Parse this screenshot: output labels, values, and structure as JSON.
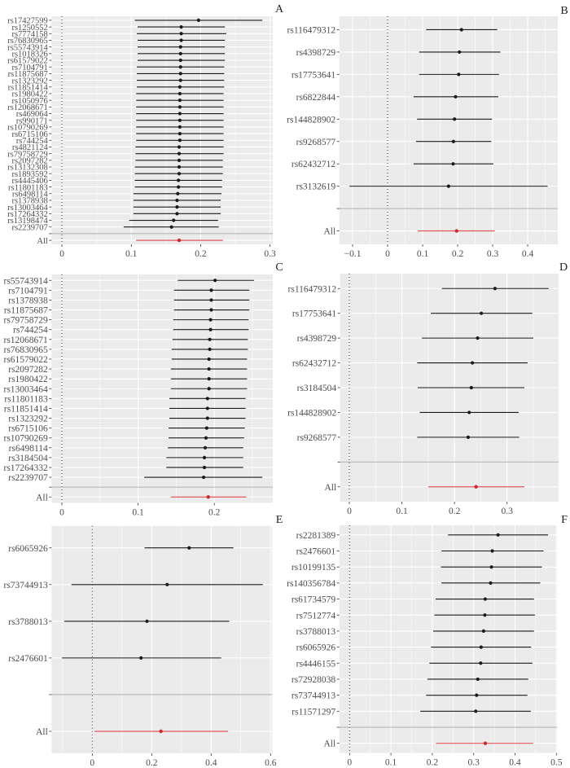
{
  "figure": {
    "description": "Leave-one-out forest plots, six panels A-F",
    "colors": {
      "panel_background": "#EBEBEB",
      "grid": "#FFFFFF",
      "snp_estimate": "#1A1A1A",
      "overall_line": "#E4575B",
      "overall_point": "#CC2A2F",
      "separator": "#ABABAB",
      "zero_line": "#222222"
    }
  },
  "chart_data": [
    {
      "panel": "A",
      "type": "forest",
      "xlim": [
        -0.015,
        0.304
      ],
      "xticks": [
        0,
        0.1,
        0.2,
        0.3
      ],
      "xtick_labels": [
        "0",
        "0.1",
        "0.2",
        "0.3"
      ],
      "reference_line": 0,
      "rows": [
        {
          "snp": "rs17427599",
          "b": 0.197,
          "lo": 0.105,
          "hi": 0.289
        },
        {
          "snp": "rs1250552",
          "b": 0.172,
          "lo": 0.109,
          "hi": 0.235
        },
        {
          "snp": "rs7774158",
          "b": 0.172,
          "lo": 0.108,
          "hi": 0.237
        },
        {
          "snp": "rs76830965",
          "b": 0.172,
          "lo": 0.109,
          "hi": 0.235
        },
        {
          "snp": "rs55743914",
          "b": 0.171,
          "lo": 0.109,
          "hi": 0.235
        },
        {
          "snp": "rs1018326",
          "b": 0.171,
          "lo": 0.109,
          "hi": 0.235
        },
        {
          "snp": "rs61579022",
          "b": 0.171,
          "lo": 0.109,
          "hi": 0.235
        },
        {
          "snp": "rs7104791",
          "b": 0.171,
          "lo": 0.108,
          "hi": 0.234
        },
        {
          "snp": "rs11875687",
          "b": 0.171,
          "lo": 0.108,
          "hi": 0.234
        },
        {
          "snp": "rs1323292",
          "b": 0.171,
          "lo": 0.108,
          "hi": 0.234
        },
        {
          "snp": "rs11851414",
          "b": 0.17,
          "lo": 0.108,
          "hi": 0.234
        },
        {
          "snp": "rs1980422",
          "b": 0.17,
          "lo": 0.107,
          "hi": 0.233
        },
        {
          "snp": "rs1050976",
          "b": 0.17,
          "lo": 0.107,
          "hi": 0.233
        },
        {
          "snp": "rs12068671",
          "b": 0.17,
          "lo": 0.107,
          "hi": 0.233
        },
        {
          "snp": "rs469064",
          "b": 0.17,
          "lo": 0.107,
          "hi": 0.233
        },
        {
          "snp": "rs990171",
          "b": 0.17,
          "lo": 0.107,
          "hi": 0.233
        },
        {
          "snp": "rs10790269",
          "b": 0.17,
          "lo": 0.107,
          "hi": 0.233
        },
        {
          "snp": "rs6715106",
          "b": 0.17,
          "lo": 0.107,
          "hi": 0.233
        },
        {
          "snp": "rs744254",
          "b": 0.17,
          "lo": 0.107,
          "hi": 0.233
        },
        {
          "snp": "rs4821124",
          "b": 0.169,
          "lo": 0.106,
          "hi": 0.233
        },
        {
          "snp": "rs79758729",
          "b": 0.169,
          "lo": 0.106,
          "hi": 0.233
        },
        {
          "snp": "rs2097282",
          "b": 0.169,
          "lo": 0.106,
          "hi": 0.232
        },
        {
          "snp": "rs13132308",
          "b": 0.169,
          "lo": 0.105,
          "hi": 0.232
        },
        {
          "snp": "rs1893592",
          "b": 0.169,
          "lo": 0.105,
          "hi": 0.232
        },
        {
          "snp": "rs4445406",
          "b": 0.168,
          "lo": 0.105,
          "hi": 0.231
        },
        {
          "snp": "rs11801183",
          "b": 0.168,
          "lo": 0.105,
          "hi": 0.231
        },
        {
          "snp": "rs6498114",
          "b": 0.167,
          "lo": 0.103,
          "hi": 0.23
        },
        {
          "snp": "rs1378938",
          "b": 0.166,
          "lo": 0.103,
          "hi": 0.229
        },
        {
          "snp": "rs13003464",
          "b": 0.166,
          "lo": 0.103,
          "hi": 0.229
        },
        {
          "snp": "rs17264332",
          "b": 0.166,
          "lo": 0.103,
          "hi": 0.229
        },
        {
          "snp": "rs13198474",
          "b": 0.161,
          "lo": 0.097,
          "hi": 0.225
        },
        {
          "snp": "rs2239707",
          "b": 0.158,
          "lo": 0.089,
          "hi": 0.226
        }
      ],
      "overall": {
        "label": "All",
        "b": 0.169,
        "lo": 0.107,
        "hi": 0.232
      }
    },
    {
      "panel": "B",
      "type": "forest",
      "xlim": [
        -0.138,
        0.486
      ],
      "xticks": [
        -0.1,
        0,
        0.1,
        0.2,
        0.3,
        0.4
      ],
      "xtick_labels": [
        "−0.1",
        "0",
        "0.1",
        "0.2",
        "0.3",
        "0.4"
      ],
      "reference_line": 0,
      "rows": [
        {
          "snp": "rs116479312",
          "b": 0.211,
          "lo": 0.11,
          "hi": 0.313
        },
        {
          "snp": "rs4398729",
          "b": 0.205,
          "lo": 0.09,
          "hi": 0.322
        },
        {
          "snp": "rs17753641",
          "b": 0.203,
          "lo": 0.09,
          "hi": 0.318
        },
        {
          "snp": "rs6822844",
          "b": 0.194,
          "lo": 0.074,
          "hi": 0.316
        },
        {
          "snp": "rs144828902",
          "b": 0.191,
          "lo": 0.084,
          "hi": 0.298
        },
        {
          "snp": "rs9268577",
          "b": 0.188,
          "lo": 0.081,
          "hi": 0.296
        },
        {
          "snp": "rs62432712",
          "b": 0.187,
          "lo": 0.074,
          "hi": 0.302
        },
        {
          "snp": "rs3132619",
          "b": 0.174,
          "lo": -0.109,
          "hi": 0.457
        }
      ],
      "overall": {
        "label": "All",
        "b": 0.197,
        "lo": 0.086,
        "hi": 0.306
      }
    },
    {
      "panel": "C",
      "type": "forest",
      "xlim": [
        -0.0136,
        0.2767
      ],
      "xticks": [
        0,
        0.1,
        0.2
      ],
      "xtick_labels": [
        "0",
        "0.1",
        "0.2"
      ],
      "reference_line": 0,
      "rows": [
        {
          "snp": "rs55743914",
          "b": 0.201,
          "lo": 0.152,
          "hi": 0.252
        },
        {
          "snp": "rs7104791",
          "b": 0.196,
          "lo": 0.147,
          "hi": 0.246
        },
        {
          "snp": "rs1378938",
          "b": 0.196,
          "lo": 0.147,
          "hi": 0.246
        },
        {
          "snp": "rs11875687",
          "b": 0.196,
          "lo": 0.147,
          "hi": 0.246
        },
        {
          "snp": "rs79758729",
          "b": 0.195,
          "lo": 0.146,
          "hi": 0.245
        },
        {
          "snp": "rs744254",
          "b": 0.195,
          "lo": 0.146,
          "hi": 0.245
        },
        {
          "snp": "rs12068671",
          "b": 0.194,
          "lo": 0.145,
          "hi": 0.244
        },
        {
          "snp": "rs76830965",
          "b": 0.194,
          "lo": 0.144,
          "hi": 0.244
        },
        {
          "snp": "rs61579022",
          "b": 0.193,
          "lo": 0.144,
          "hi": 0.243
        },
        {
          "snp": "rs2097282",
          "b": 0.193,
          "lo": 0.143,
          "hi": 0.243
        },
        {
          "snp": "rs1980422",
          "b": 0.193,
          "lo": 0.143,
          "hi": 0.243
        },
        {
          "snp": "rs13003464",
          "b": 0.193,
          "lo": 0.143,
          "hi": 0.243
        },
        {
          "snp": "rs11801183",
          "b": 0.191,
          "lo": 0.141,
          "hi": 0.241
        },
        {
          "snp": "rs11851414",
          "b": 0.191,
          "lo": 0.141,
          "hi": 0.241
        },
        {
          "snp": "rs1323292",
          "b": 0.191,
          "lo": 0.141,
          "hi": 0.241
        },
        {
          "snp": "rs6715106",
          "b": 0.19,
          "lo": 0.14,
          "hi": 0.24
        },
        {
          "snp": "rs10790269",
          "b": 0.189,
          "lo": 0.14,
          "hi": 0.239
        },
        {
          "snp": "rs6498114",
          "b": 0.188,
          "lo": 0.139,
          "hi": 0.238
        },
        {
          "snp": "rs3184504",
          "b": 0.187,
          "lo": 0.137,
          "hi": 0.238
        },
        {
          "snp": "rs17264332",
          "b": 0.187,
          "lo": 0.137,
          "hi": 0.238
        },
        {
          "snp": "rs2239707",
          "b": 0.186,
          "lo": 0.108,
          "hi": 0.263
        }
      ],
      "overall": {
        "label": "All",
        "b": 0.192,
        "lo": 0.143,
        "hi": 0.242
      }
    },
    {
      "panel": "D",
      "type": "forest",
      "xlim": [
        -0.0175,
        0.398
      ],
      "xticks": [
        0,
        0.1,
        0.2,
        0.3
      ],
      "xtick_labels": [
        "0",
        "0.1",
        "0.2",
        "0.3"
      ],
      "reference_line": 0,
      "rows": [
        {
          "snp": "rs116479312",
          "b": 0.277,
          "lo": 0.176,
          "hi": 0.379
        },
        {
          "snp": "rs17753641",
          "b": 0.251,
          "lo": 0.155,
          "hi": 0.348
        },
        {
          "snp": "rs4398729",
          "b": 0.244,
          "lo": 0.138,
          "hi": 0.35
        },
        {
          "snp": "rs62432712",
          "b": 0.234,
          "lo": 0.129,
          "hi": 0.339
        },
        {
          "snp": "rs3184504",
          "b": 0.232,
          "lo": 0.13,
          "hi": 0.333
        },
        {
          "snp": "rs144828902",
          "b": 0.228,
          "lo": 0.134,
          "hi": 0.322
        },
        {
          "snp": "rs9268577",
          "b": 0.226,
          "lo": 0.129,
          "hi": 0.323
        }
      ],
      "overall": {
        "label": "All",
        "b": 0.241,
        "lo": 0.15,
        "hi": 0.333
      }
    },
    {
      "panel": "E",
      "type": "forest",
      "xlim": [
        -0.137,
        0.6055
      ],
      "xticks": [
        0,
        0.2,
        0.4,
        0.6
      ],
      "xtick_labels": [
        "0",
        "0.2",
        "0.4",
        "0.6"
      ],
      "reference_line": 0,
      "rows": [
        {
          "snp": "rs6065926",
          "b": 0.326,
          "lo": 0.176,
          "hi": 0.475
        },
        {
          "snp": "rs73744913",
          "b": 0.252,
          "lo": -0.07,
          "hi": 0.574
        },
        {
          "snp": "rs3788013",
          "b": 0.184,
          "lo": -0.094,
          "hi": 0.461
        },
        {
          "snp": "rs2476601",
          "b": 0.164,
          "lo": -0.102,
          "hi": 0.434
        }
      ],
      "overall": {
        "label": "All",
        "b": 0.231,
        "lo": 0.007,
        "hi": 0.457
      }
    },
    {
      "panel": "F",
      "type": "forest",
      "xlim": [
        -0.0248,
        0.502
      ],
      "xticks": [
        0,
        0.1,
        0.2,
        0.3,
        0.4,
        0.5
      ],
      "xtick_labels": [
        "0",
        "0.1",
        "0.2",
        "0.3",
        "0.4",
        "0.5"
      ],
      "reference_line": 0,
      "rows": [
        {
          "snp": "rs2281389",
          "b": 0.359,
          "lo": 0.238,
          "hi": 0.48
        },
        {
          "snp": "rs2476601",
          "b": 0.345,
          "lo": 0.222,
          "hi": 0.469
        },
        {
          "snp": "rs10199135",
          "b": 0.343,
          "lo": 0.221,
          "hi": 0.465
        },
        {
          "snp": "rs140356784",
          "b": 0.341,
          "lo": 0.222,
          "hi": 0.461
        },
        {
          "snp": "rs61734579",
          "b": 0.328,
          "lo": 0.208,
          "hi": 0.446
        },
        {
          "snp": "rs7512774",
          "b": 0.327,
          "lo": 0.205,
          "hi": 0.448
        },
        {
          "snp": "rs3788013",
          "b": 0.324,
          "lo": 0.202,
          "hi": 0.446
        },
        {
          "snp": "rs6065926",
          "b": 0.318,
          "lo": 0.197,
          "hi": 0.439
        },
        {
          "snp": "rs4446155",
          "b": 0.317,
          "lo": 0.193,
          "hi": 0.442
        },
        {
          "snp": "rs72928038",
          "b": 0.31,
          "lo": 0.188,
          "hi": 0.432
        },
        {
          "snp": "rs73744913",
          "b": 0.307,
          "lo": 0.185,
          "hi": 0.43
        },
        {
          "snp": "rs11571297",
          "b": 0.305,
          "lo": 0.171,
          "hi": 0.438
        }
      ],
      "overall": {
        "label": "All",
        "b": 0.328,
        "lo": 0.209,
        "hi": 0.444
      }
    }
  ]
}
